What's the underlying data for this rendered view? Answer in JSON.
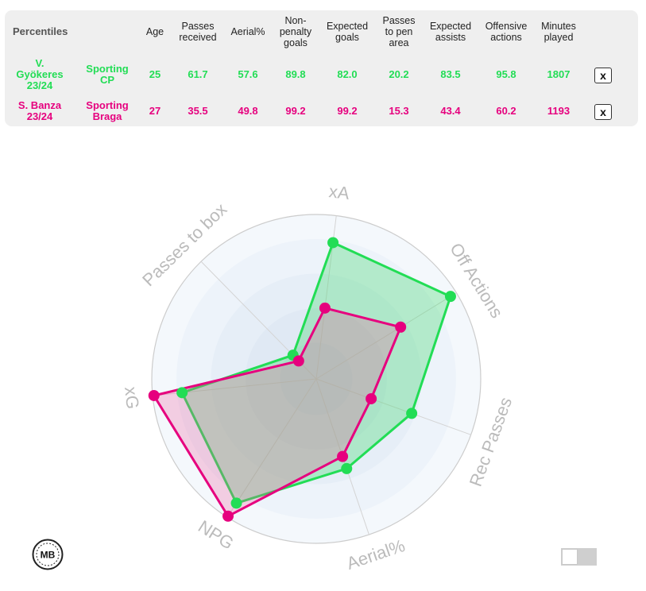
{
  "table": {
    "corner_label": "Percentiles",
    "columns": [
      [
        "Age"
      ],
      [
        "Passes",
        "received"
      ],
      [
        "Aerial%"
      ],
      [
        "Non-",
        "penalty",
        "goals"
      ],
      [
        "Expected",
        "goals"
      ],
      [
        "Passes",
        "to pen",
        "area"
      ],
      [
        "Expected",
        "assists"
      ],
      [
        "Offensive",
        "actions"
      ],
      [
        "Minutes",
        "played"
      ]
    ],
    "remove_label": "x",
    "rows": [
      {
        "player": [
          "V.",
          "Gyökeres",
          "23/24"
        ],
        "team": [
          "Sporting",
          "CP"
        ],
        "values": [
          "25",
          "61.7",
          "57.6",
          "89.8",
          "82.0",
          "20.2",
          "83.5",
          "95.8",
          "1807"
        ],
        "color": "#22dd55"
      },
      {
        "player": [
          "S. Banza",
          "23/24"
        ],
        "team": [
          "Sporting",
          "Braga"
        ],
        "values": [
          "27",
          "35.5",
          "49.8",
          "99.2",
          "99.2",
          "15.3",
          "43.4",
          "60.2",
          "1193"
        ],
        "color": "#e6007e"
      }
    ]
  },
  "chart_data": {
    "type": "radar",
    "axes": [
      "xA",
      "Off Actions",
      "Rec Passes",
      "Aerial%",
      "NPG",
      "xG",
      "Passes to box"
    ],
    "range": [
      0,
      100
    ],
    "grid": true,
    "series": [
      {
        "name": "V. Gyökeres 23/24",
        "values": [
          83.5,
          95.8,
          61.7,
          57.6,
          89.8,
          82.0,
          20.2
        ],
        "color": "#22dd55",
        "fill": "rgba(46,214,96,0.30)"
      },
      {
        "name": "S. Banza 23/24",
        "values": [
          43.4,
          60.2,
          35.5,
          49.8,
          99.2,
          99.2,
          15.3
        ],
        "color": "#e6007e",
        "fill": "rgba(236,80,150,0.26)"
      }
    ]
  },
  "footer": {
    "logo_text": "MB"
  }
}
